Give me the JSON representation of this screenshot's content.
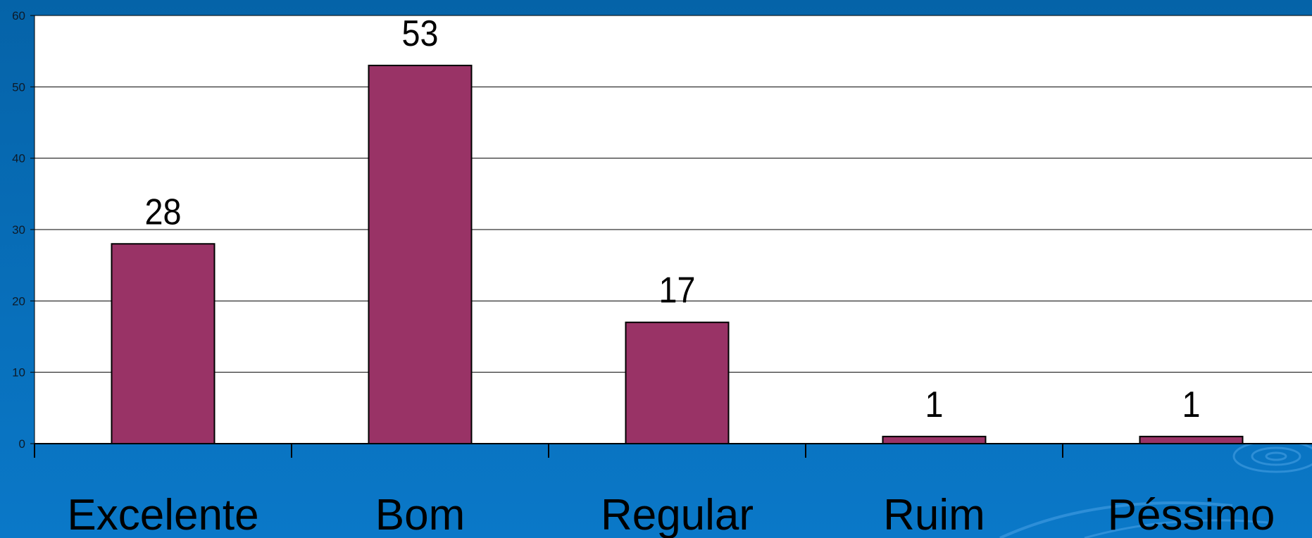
{
  "chart_data": {
    "type": "bar",
    "categories": [
      "Excelente",
      "Bom",
      "Regular",
      "Ruim",
      "Péssimo"
    ],
    "values": [
      28,
      53,
      17,
      1,
      1
    ],
    "data_labels": [
      "28",
      "53",
      "17",
      "1",
      "1"
    ],
    "title": "",
    "xlabel": "",
    "ylabel": "",
    "ylim": [
      0,
      60
    ],
    "yticks": [
      0,
      10,
      20,
      30,
      40,
      50,
      60
    ],
    "grid": true,
    "legend": "none",
    "colors": {
      "bar": "#993366",
      "plot_background": "#ffffff",
      "slide_background": "#0a6fba",
      "gridline": "#000000"
    }
  }
}
